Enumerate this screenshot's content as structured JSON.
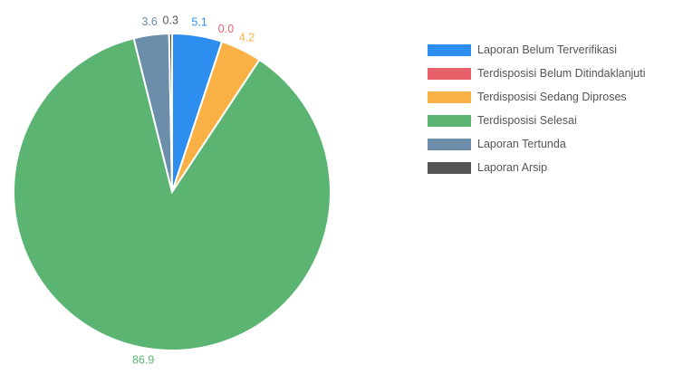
{
  "chart_data": {
    "type": "pie",
    "title": "",
    "legend_position": "right",
    "label_decimals": 1,
    "series": [
      {
        "name": "Laporan Belum Terverifikasi",
        "value": 5.1,
        "color": "#2d8ef0",
        "label_color": "#2d8ef0"
      },
      {
        "name": "Terdisposisi Belum Ditindaklanjuti",
        "value": 0.0,
        "color": "#e8606a",
        "label_color": "#e8606a"
      },
      {
        "name": "Terdisposisi Sedang Diproses",
        "value": 4.2,
        "color": "#f9b145",
        "label_color": "#f9b145"
      },
      {
        "name": "Terdisposisi Selesai",
        "value": 86.9,
        "color": "#5bb471",
        "label_color": "#5bb471"
      },
      {
        "name": "Laporan Tertunda",
        "value": 3.6,
        "color": "#6c8eaa",
        "label_color": "#6c8eaa"
      },
      {
        "name": "Laporan Arsip",
        "value": 0.3,
        "color": "#555555",
        "label_color": "#555555"
      }
    ]
  }
}
